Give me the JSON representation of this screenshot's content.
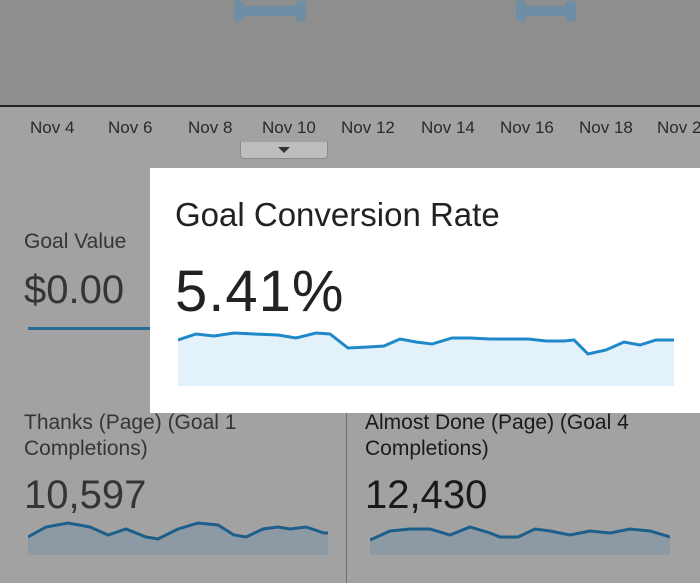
{
  "timeline": {
    "labels": [
      "Nov 4",
      "Nov 6",
      "Nov 8",
      "Nov 10",
      "Nov 12",
      "Nov 14",
      "Nov 16",
      "Nov 18",
      "Nov 2"
    ]
  },
  "goal_value": {
    "label": "Goal Value",
    "value": "$0.00"
  },
  "highlight": {
    "title": "Goal Conversion Rate",
    "value": "5.41%",
    "color": "#1f88c8"
  },
  "cards": [
    {
      "title": "Thanks (Page) (Goal 1 Completions)",
      "value": "10,597"
    },
    {
      "title": "Almost Done (Page) (Goal 4 Completions)",
      "value": "12,430"
    }
  ],
  "colors": {
    "line": "#1f88c8",
    "fill": "#e3f1fa",
    "dim_line": "#1d5f8a",
    "dim_fill": "#9aa8b2"
  }
}
